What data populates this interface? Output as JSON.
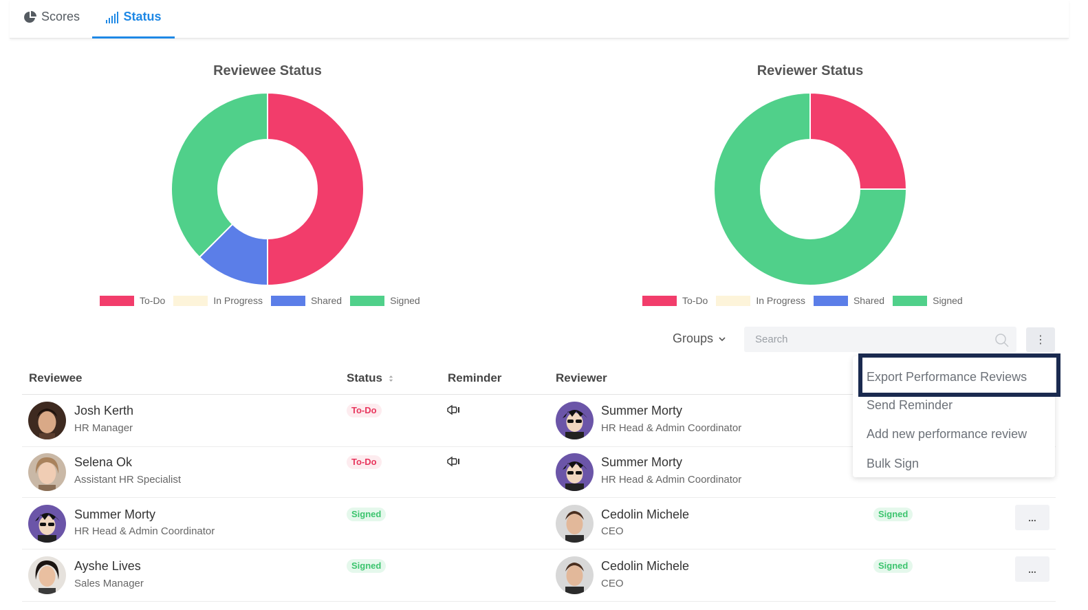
{
  "tabs": {
    "scores": "Scores",
    "status": "Status"
  },
  "charts": [
    {
      "title": "Reviewee Status"
    },
    {
      "title": "Reviewer Status"
    }
  ],
  "chart_data": [
    {
      "type": "pie",
      "title": "Reviewee Status",
      "categories": [
        "To-Do",
        "In Progress",
        "Shared",
        "Signed"
      ],
      "values": [
        2,
        0,
        0.5,
        1.5
      ],
      "colors": [
        "#f23d6b",
        "#fdf4da",
        "#5b7ee8",
        "#50d08a"
      ]
    },
    {
      "type": "pie",
      "title": "Reviewer Status",
      "categories": [
        "To-Do",
        "In Progress",
        "Shared",
        "Signed"
      ],
      "values": [
        1,
        0,
        0,
        3
      ],
      "colors": [
        "#f23d6b",
        "#fdf4da",
        "#5b7ee8",
        "#50d08a"
      ]
    }
  ],
  "toolbar": {
    "groups": "Groups",
    "search_placeholder": "Search",
    "kebab": "⋮"
  },
  "table": {
    "headers": {
      "reviewee": "Reviewee",
      "status": "Status",
      "reminder": "Reminder",
      "reviewer": "Reviewer"
    },
    "rows": [
      {
        "reviewee": "Josh Kerth",
        "reviewee_role": "HR Manager",
        "status": "To-Do",
        "reviewer": "Summer Morty",
        "reviewer_role": "HR Head & Admin Coordinator"
      },
      {
        "reviewee": "Selena Ok",
        "reviewee_role": "Assistant HR  Specialist",
        "status": "To-Do",
        "reviewer": "Summer Morty",
        "reviewer_role": "HR Head & Admin Coordinator"
      },
      {
        "reviewee": "Summer Morty",
        "reviewee_role": "HR Head & Admin Coordinator",
        "status": "Signed",
        "reviewer": "Cedolin Michele",
        "reviewer_role": "CEO",
        "reviewer_status": "Signed",
        "more": "..."
      },
      {
        "reviewee": "Ayshe Lives",
        "reviewee_role": "Sales Manager",
        "status": "Signed",
        "reviewer": "Cedolin Michele",
        "reviewer_role": "CEO",
        "reviewer_status": "Signed",
        "more": "..."
      }
    ]
  },
  "menu": {
    "items": [
      "Export Performance Reviews",
      "Send Reminder",
      "Add new performance review",
      "Bulk Sign"
    ]
  }
}
